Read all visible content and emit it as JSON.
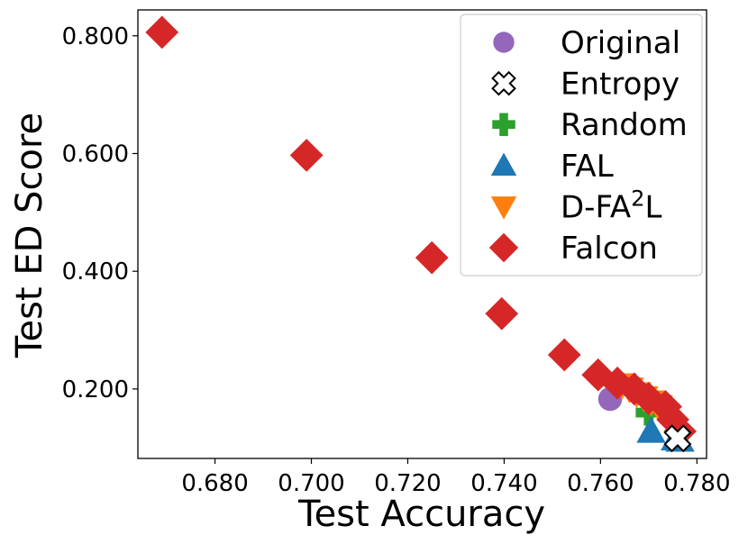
{
  "chart_data": {
    "type": "scatter",
    "title": "",
    "xlabel": "Test Accuracy",
    "ylabel": "Test ED Score",
    "xlim": [
      0.664,
      0.782
    ],
    "ylim": [
      0.082,
      0.844
    ],
    "xticks": [
      0.68,
      0.7,
      0.72,
      0.74,
      0.76,
      0.78
    ],
    "yticks": [
      0.2,
      0.4,
      0.6,
      0.8
    ],
    "xtick_labels": [
      "0.680",
      "0.700",
      "0.720",
      "0.740",
      "0.760",
      "0.780"
    ],
    "ytick_labels": [
      "0.200",
      "0.400",
      "0.600",
      "0.800"
    ],
    "grid": false,
    "legend_position": "top-right",
    "series": [
      {
        "name": "Original",
        "label_main": "Original",
        "label_sup": "",
        "marker": "circle",
        "color": "#9467bd",
        "x": [
          0.762
        ],
        "y": [
          0.183
        ]
      },
      {
        "name": "Entropy",
        "label_main": "Entropy",
        "label_sup": "",
        "marker": "x-filled",
        "color": "#ffffff",
        "edge": "#000000",
        "x": [
          0.776
        ],
        "y": [
          0.116
        ]
      },
      {
        "name": "Random",
        "label_main": "Random",
        "label_sup": "",
        "marker": "plus-filled",
        "color": "#2ca02c",
        "x": [
          0.77
        ],
        "y": [
          0.16
        ]
      },
      {
        "name": "FAL",
        "label_main": "FAL",
        "label_sup": "",
        "marker": "triangle-up",
        "color": "#1f77b4",
        "x": [
          0.7705,
          0.7755,
          0.7765
        ],
        "y": [
          0.128,
          0.115,
          0.113
        ]
      },
      {
        "name": "D-FA2L",
        "label_main": "D-FA",
        "label_sup": "2",
        "label_tail": "L",
        "marker": "triangle-down",
        "color": "#ff7f0e",
        "x": [
          0.7645,
          0.766,
          0.7675,
          0.769,
          0.7705,
          0.772
        ],
        "y": [
          0.207,
          0.2,
          0.192,
          0.185,
          0.178,
          0.17
        ]
      },
      {
        "name": "Falcon",
        "label_main": "Falcon",
        "label_sup": "",
        "marker": "diamond",
        "color": "#d62728",
        "x": [
          0.669,
          0.699,
          0.725,
          0.7395,
          0.7525,
          0.7595,
          0.7635,
          0.767,
          0.77,
          0.7735,
          0.775,
          0.7765
        ],
        "y": [
          0.806,
          0.597,
          0.423,
          0.328,
          0.258,
          0.224,
          0.21,
          0.2,
          0.184,
          0.17,
          0.148,
          0.128
        ]
      }
    ]
  }
}
